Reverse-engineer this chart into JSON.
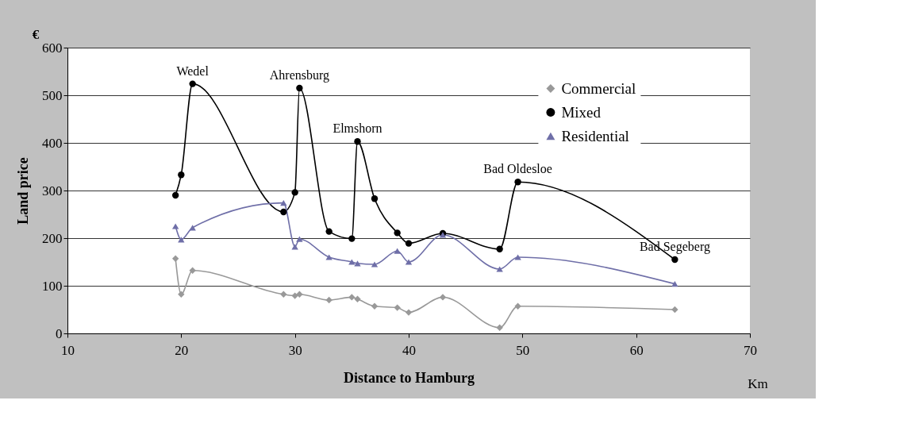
{
  "chart_data": {
    "type": "line",
    "xlabel": "Distance to Hamburg",
    "ylabel": "Land price",
    "x": [
      19.5,
      20,
      21,
      29,
      30,
      30.4,
      33,
      35,
      35.5,
      37,
      39,
      40,
      43,
      48,
      49.6,
      63.4
    ],
    "series": [
      {
        "name": "Commercial",
        "color": "#999999",
        "marker": "diamond",
        "values": [
          157,
          82,
          132,
          82,
          79,
          82,
          70,
          76,
          72,
          57,
          54,
          44,
          76,
          12,
          57,
          50
        ]
      },
      {
        "name": "Mixed",
        "color": "#000000",
        "marker": "circle",
        "values": [
          290,
          333,
          524,
          255,
          296,
          515,
          214,
          199,
          403,
          283,
          211,
          189,
          210,
          177,
          318,
          155
        ]
      },
      {
        "name": "Residential",
        "color": "#6f6fa8",
        "marker": "triangle",
        "values": [
          225,
          197,
          222,
          274,
          182,
          198,
          160,
          150,
          147,
          145,
          173,
          150,
          207,
          135,
          160,
          104
        ]
      }
    ],
    "xlim": [
      10,
      70
    ],
    "xticks": [
      10,
      20,
      30,
      40,
      50,
      60,
      70
    ],
    "ylim": [
      0,
      600
    ],
    "yticks": [
      0,
      100,
      200,
      300,
      400,
      500,
      600
    ],
    "grid": "y",
    "line_style": "solid",
    "legend": "top right",
    "annotations": [
      {
        "text": "Wedel",
        "x": 21,
        "y": 524
      },
      {
        "text": "Ahrensburg",
        "x": 30.4,
        "y": 515
      },
      {
        "text": "Elmshorn",
        "x": 35.5,
        "y": 403
      },
      {
        "text": "Bad Oldesloe",
        "x": 49.6,
        "y": 318
      },
      {
        "text": "Bad Segeberg",
        "x": 63.4,
        "y": 155
      },
      "€",
      "Km"
    ]
  }
}
